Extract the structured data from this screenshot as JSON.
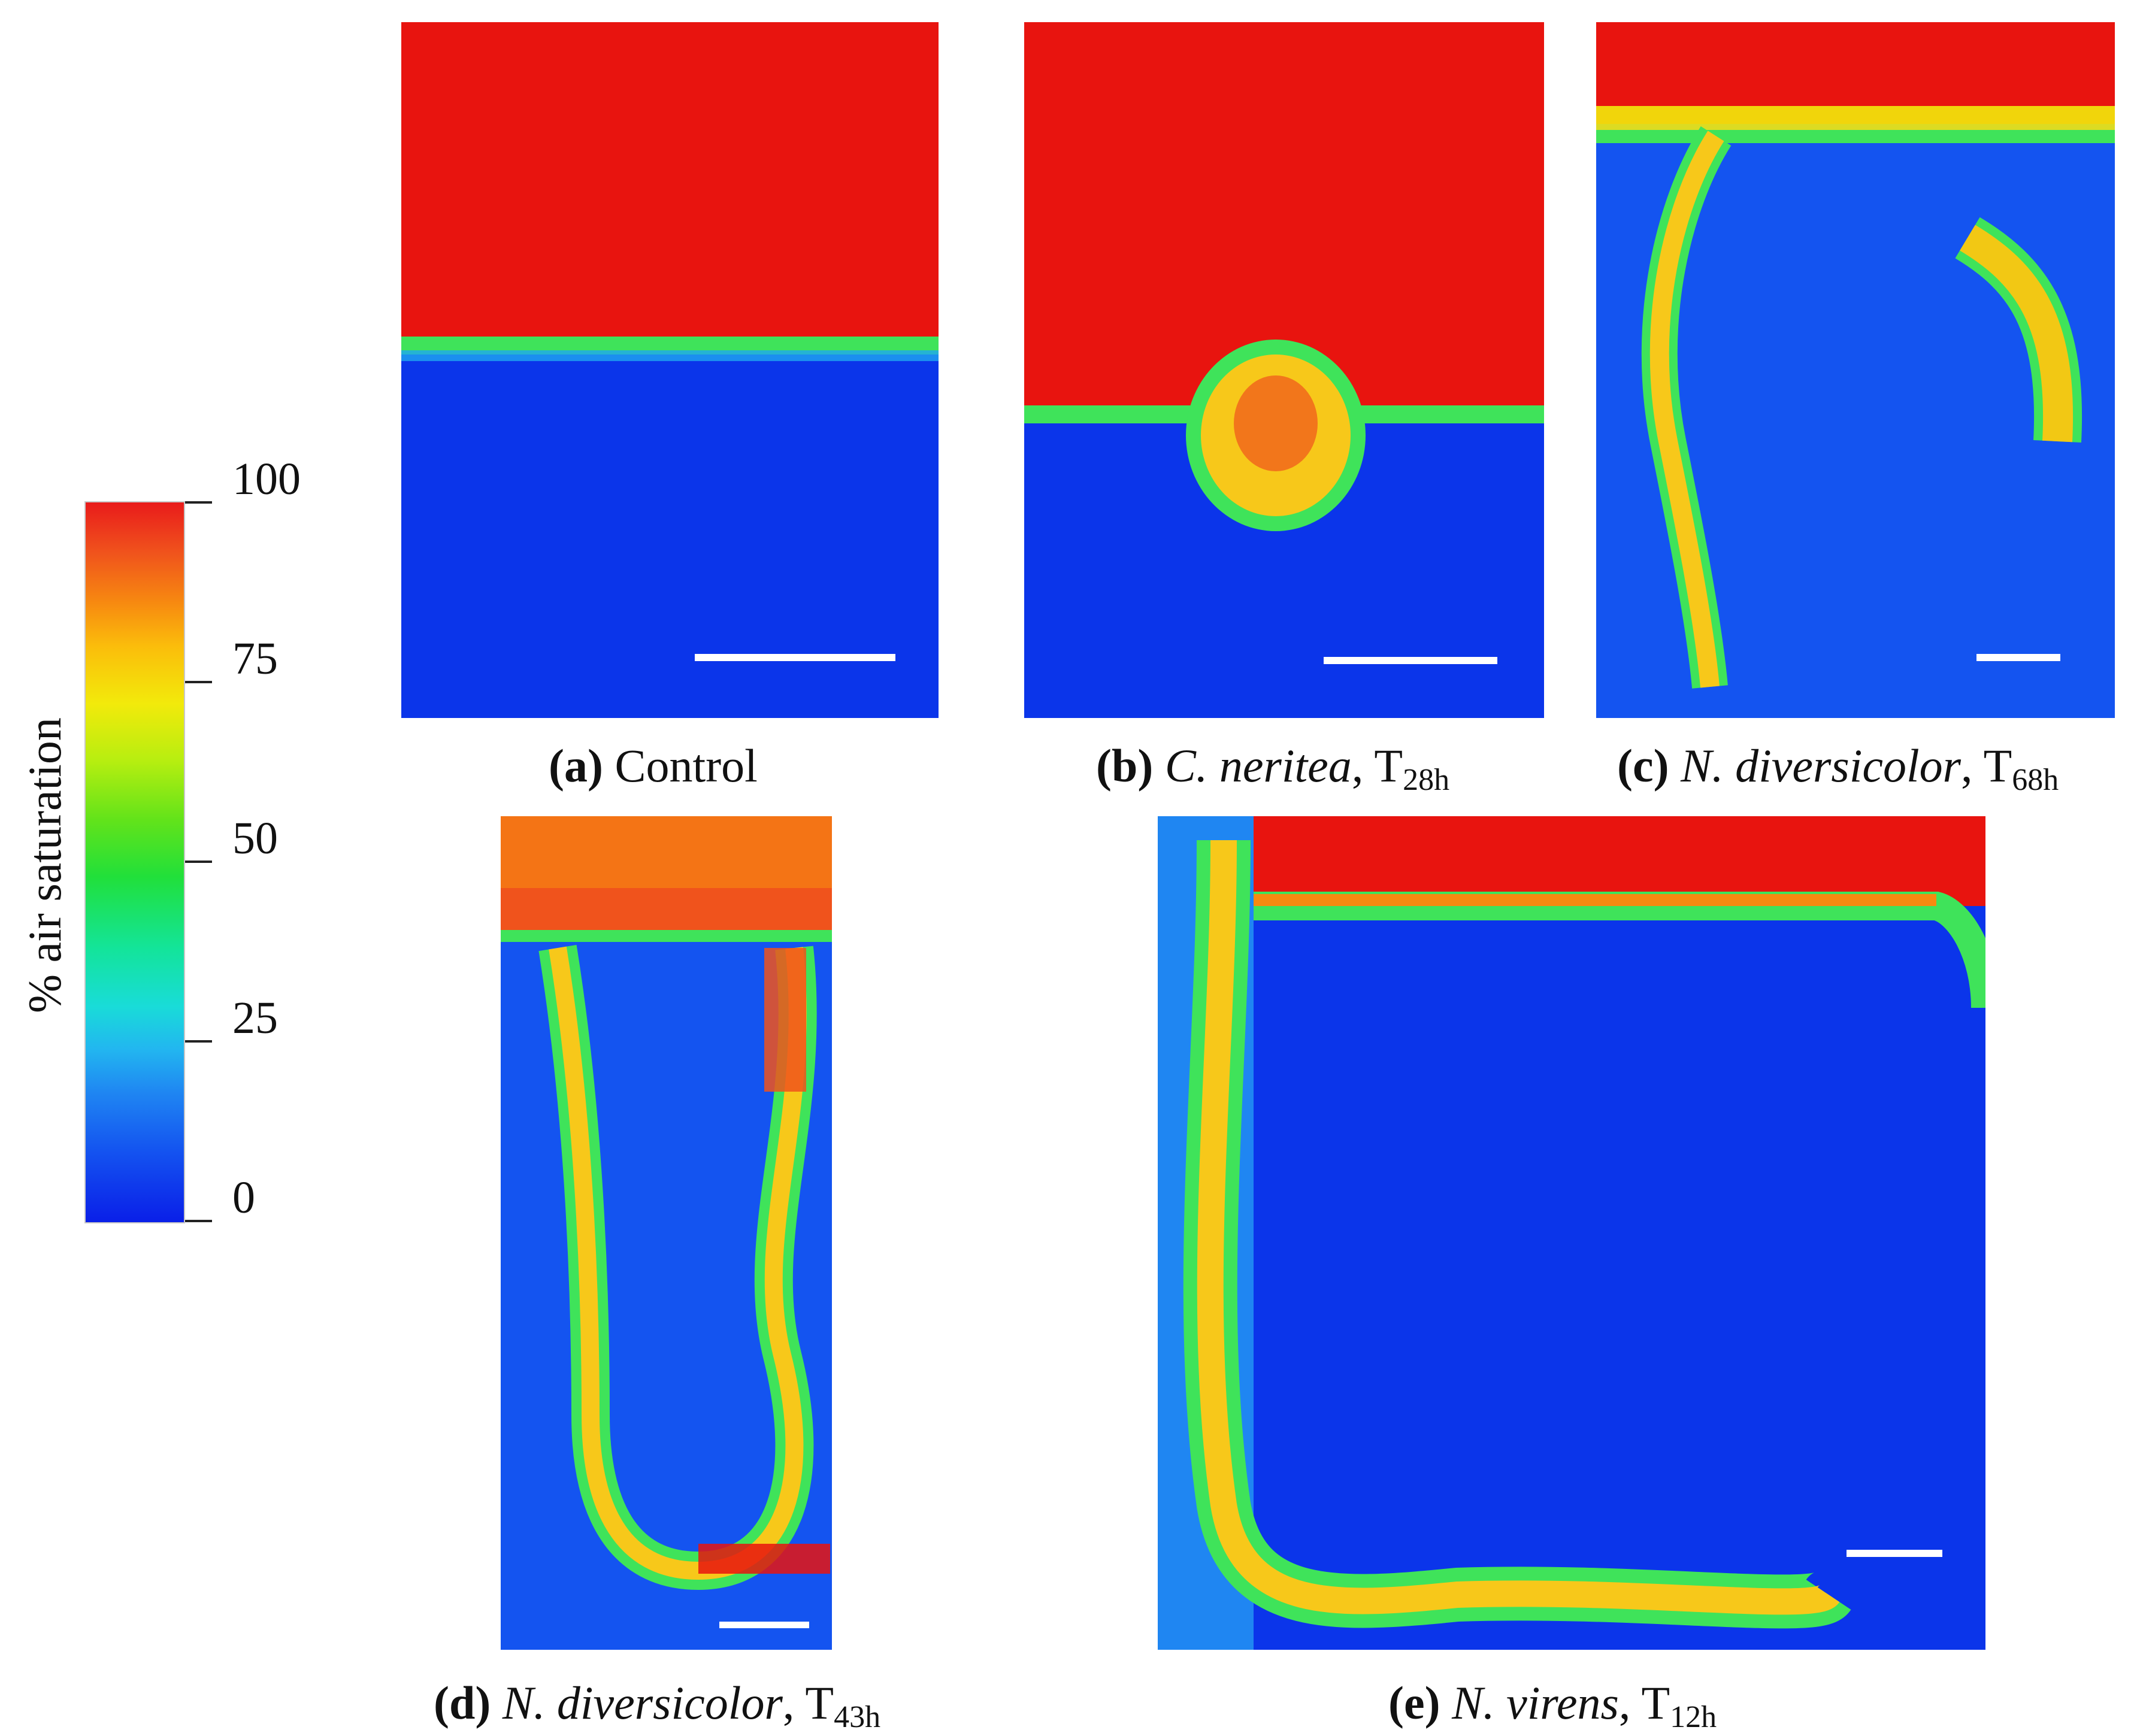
{
  "colorbar": {
    "title": "% air saturation",
    "ticks": [
      "100",
      "75",
      "50",
      "25",
      "0"
    ]
  },
  "panels": [
    {
      "letter": "(a)",
      "label": "Control",
      "time_base": "",
      "time_sub": ""
    },
    {
      "letter": "(b)",
      "label": "C. neritea",
      "time_base": "T",
      "time_sub": "28h"
    },
    {
      "letter": "(c)",
      "label": "N. diversicolor",
      "time_base": "T",
      "time_sub": "68h"
    },
    {
      "letter": "(d)",
      "label": "N. diversicolor",
      "time_base": "T",
      "time_sub": "43h"
    },
    {
      "letter": "(e)",
      "label": "N. virens",
      "time_base": "T",
      "time_sub": "12h"
    }
  ],
  "colors": {
    "oxic": "#e8140f",
    "anoxic": "#0b35ea",
    "burrow_wall": "#f7c81a",
    "transition": "#3fe35a"
  }
}
